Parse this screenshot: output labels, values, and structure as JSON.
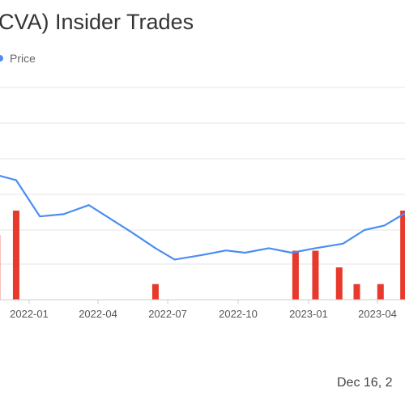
{
  "title": "CVA) Insider Trades",
  "legend": {
    "label": "Price",
    "color": "#4a8ef2"
  },
  "footer": {
    "date": "Dec 16, 2"
  },
  "colors": {
    "price_line": "#4a8ef2",
    "bars": "#e8392d",
    "grid": "#e6e6e6",
    "axis": "#cccccc"
  },
  "chart_data": {
    "type": "line",
    "title": "CVA) Insider Trades",
    "x_ticks": [
      "2022-01",
      "2022-04",
      "2022-07",
      "2022-10",
      "2023-01",
      "2023-04"
    ],
    "grid": true,
    "legend_position": "top-left",
    "series": [
      {
        "name": "Price",
        "kind": "line",
        "points": [
          {
            "x": "2021-10-20",
            "y": 6.7
          },
          {
            "x": "2021-12-15",
            "y": 6.2
          },
          {
            "x": "2022-01-15",
            "y": 4.6
          },
          {
            "x": "2022-02-15",
            "y": 4.7
          },
          {
            "x": "2022-03-20",
            "y": 5.1
          },
          {
            "x": "2022-05-15",
            "y": 3.9
          },
          {
            "x": "2022-06-15",
            "y": 3.2
          },
          {
            "x": "2022-07-10",
            "y": 2.7
          },
          {
            "x": "2022-08-15",
            "y": 2.9
          },
          {
            "x": "2022-09-15",
            "y": 3.1
          },
          {
            "x": "2022-10-10",
            "y": 3.0
          },
          {
            "x": "2022-11-10",
            "y": 3.2
          },
          {
            "x": "2022-12-10",
            "y": 3.0
          },
          {
            "x": "2023-01-10",
            "y": 3.2
          },
          {
            "x": "2023-02-15",
            "y": 3.4
          },
          {
            "x": "2023-03-15",
            "y": 4.0
          },
          {
            "x": "2023-04-10",
            "y": 4.2
          },
          {
            "x": "2023-05-10",
            "y": 4.8
          }
        ]
      },
      {
        "kind": "bar",
        "bars": [
          {
            "x": "2021-11-20",
            "value": 5.8
          },
          {
            "x": "2021-12-15",
            "value": 8.0
          },
          {
            "x": "2022-06-15",
            "value": 1.4
          },
          {
            "x": "2022-12-15",
            "value": 4.4
          },
          {
            "x": "2023-01-10",
            "value": 4.4
          },
          {
            "x": "2023-02-10",
            "value": 2.9
          },
          {
            "x": "2023-03-05",
            "value": 1.4
          },
          {
            "x": "2023-04-05",
            "value": 1.4
          },
          {
            "x": "2023-05-05",
            "value": 8.0
          }
        ]
      }
    ]
  }
}
